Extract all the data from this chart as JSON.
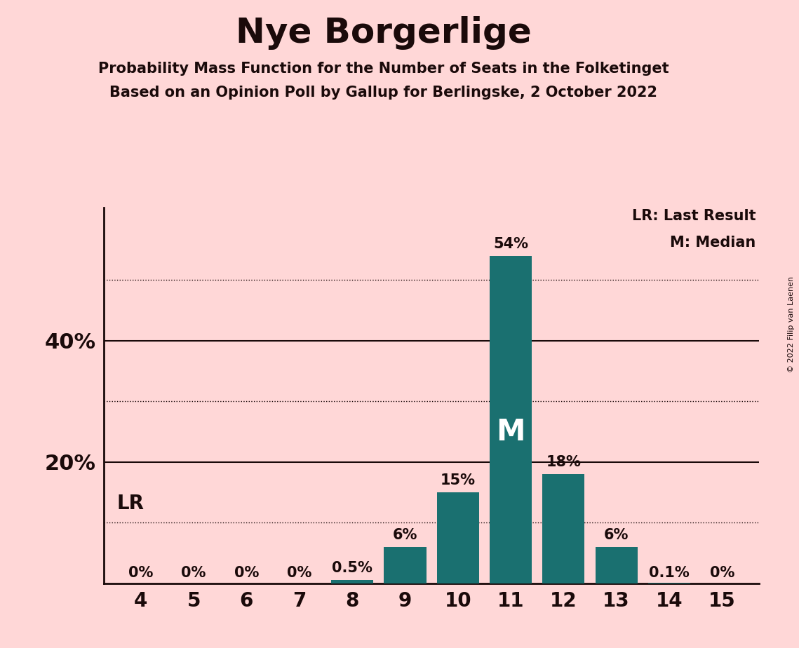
{
  "title": "Nye Borgerlige",
  "subtitle1": "Probability Mass Function for the Number of Seats in the Folketinget",
  "subtitle2": "Based on an Opinion Poll by Gallup for Berlingske, 2 October 2022",
  "copyright": "© 2022 Filip van Laenen",
  "seats": [
    4,
    5,
    6,
    7,
    8,
    9,
    10,
    11,
    12,
    13,
    14,
    15
  ],
  "probabilities": [
    0.0,
    0.0,
    0.0,
    0.0,
    0.5,
    6.0,
    15.0,
    54.0,
    18.0,
    6.0,
    0.1,
    0.0
  ],
  "labels": [
    "0%",
    "0%",
    "0%",
    "0%",
    "0.5%",
    "6%",
    "15%",
    "54%",
    "18%",
    "6%",
    "0.1%",
    "0%"
  ],
  "bar_color": "#1a7070",
  "background_color": "#ffd7d7",
  "text_color": "#1a0a0a",
  "median_seat": 11,
  "lr_seat": 4,
  "yticks_solid": [
    20,
    40
  ],
  "yticks_dotted": [
    10,
    30,
    50
  ],
  "ylim": [
    0,
    62
  ]
}
